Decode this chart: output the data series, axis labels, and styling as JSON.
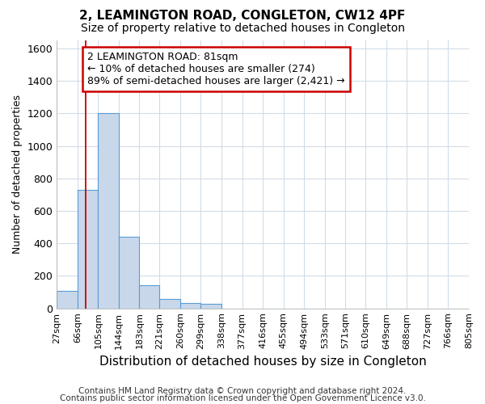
{
  "title": "2, LEAMINGTON ROAD, CONGLETON, CW12 4PF",
  "subtitle": "Size of property relative to detached houses in Congleton",
  "xlabel": "Distribution of detached houses by size in Congleton",
  "ylabel": "Number of detached properties",
  "footer1": "Contains HM Land Registry data © Crown copyright and database right 2024.",
  "footer2": "Contains public sector information licensed under the Open Government Licence v3.0.",
  "annotation_line1": "2 LEAMINGTON ROAD: 81sqm",
  "annotation_line2": "← 10% of detached houses are smaller (274)",
  "annotation_line3": "89% of semi-detached houses are larger (2,421) →",
  "bar_left_edges": [
    27,
    66,
    105,
    144,
    183,
    221,
    260,
    299,
    338,
    377,
    416,
    455,
    494,
    533,
    571,
    610,
    649,
    688,
    727,
    766
  ],
  "bar_widths": [
    39,
    39,
    39,
    39,
    38,
    39,
    39,
    39,
    39,
    39,
    39,
    39,
    39,
    38,
    39,
    39,
    39,
    39,
    39,
    39
  ],
  "bar_heights": [
    110,
    730,
    1200,
    440,
    145,
    60,
    35,
    30,
    0,
    0,
    0,
    0,
    0,
    0,
    0,
    0,
    0,
    0,
    0,
    0
  ],
  "tick_labels": [
    "27sqm",
    "66sqm",
    "105sqm",
    "144sqm",
    "183sqm",
    "221sqm",
    "260sqm",
    "299sqm",
    "338sqm",
    "377sqm",
    "416sqm",
    "455sqm",
    "494sqm",
    "533sqm",
    "571sqm",
    "610sqm",
    "649sqm",
    "688sqm",
    "727sqm",
    "766sqm",
    "805sqm"
  ],
  "bar_color": "#c8d8ea",
  "bar_edge_color": "#5b9bd5",
  "vline_color": "#cc0000",
  "vline_x": 81,
  "annotation_box_color": "#cc0000",
  "ylim": [
    0,
    1650
  ],
  "yticks": [
    0,
    200,
    400,
    600,
    800,
    1000,
    1200,
    1400,
    1600
  ],
  "bg_color": "#ffffff",
  "plot_bg_color": "#ffffff",
  "grid_color": "#d0dce8",
  "title_fontsize": 11,
  "subtitle_fontsize": 10,
  "xlabel_fontsize": 11,
  "ylabel_fontsize": 9,
  "tick_fontsize": 8,
  "annotation_fontsize": 9,
  "footer_fontsize": 7.5
}
